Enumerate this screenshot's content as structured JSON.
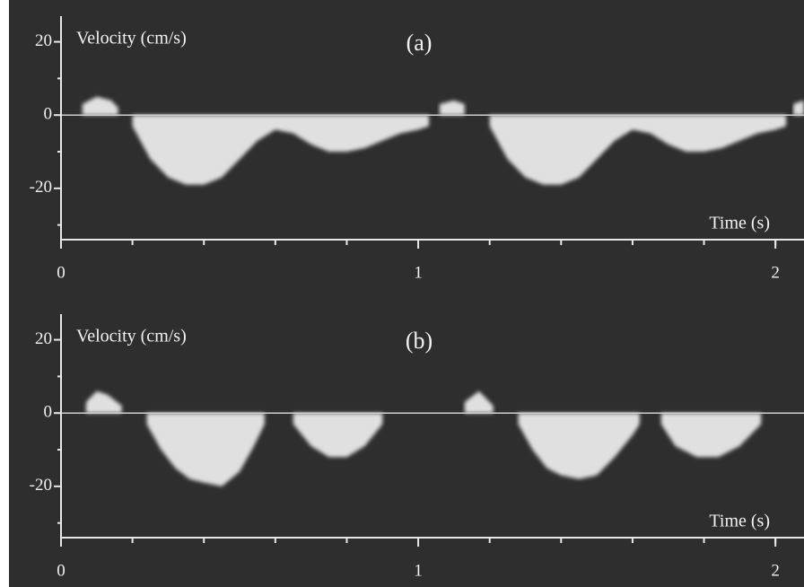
{
  "chart_data": [
    {
      "type": "area",
      "title": "(a)",
      "y_label": "Velocity (cm/s)",
      "x_label": "Time (s)",
      "xlim": [
        0,
        2.08
      ],
      "ylim": [
        -34,
        27
      ],
      "xticks": [
        0,
        1,
        2
      ],
      "yticks": [
        20,
        0,
        -20
      ],
      "x_minor_ticks": [
        0.2,
        0.4,
        0.6,
        0.8,
        1.2,
        1.4,
        1.6,
        1.8,
        2.0
      ],
      "y_minor_ticks": [
        10,
        -10,
        -30
      ],
      "color": "#ffffff",
      "series": [
        {
          "x": [
            0.2,
            0.25,
            0.3,
            0.35,
            0.4,
            0.45,
            0.5,
            0.55,
            0.6,
            0.65,
            0.7,
            0.75,
            0.8,
            0.85,
            0.9,
            0.95,
            1.0,
            1.03,
            null,
            1.2,
            1.25,
            1.3,
            1.35,
            1.4,
            1.45,
            1.5,
            1.55,
            1.6,
            1.65,
            1.7,
            1.75,
            1.8,
            1.85,
            1.9,
            1.95,
            2.0,
            2.03
          ],
          "values": [
            -3,
            -12,
            -17,
            -19,
            -19,
            -17,
            -12,
            -7,
            -4,
            -5,
            -8,
            -10,
            -10,
            -9,
            -7,
            -5,
            -4,
            -3,
            null,
            -3,
            -12,
            -17,
            -19,
            -19,
            -17,
            -12,
            -7,
            -4,
            -5,
            -8,
            -10,
            -10,
            -9,
            -7,
            -5,
            -4,
            -3
          ]
        },
        {
          "x": [
            0.06,
            0.1,
            0.14,
            0.16,
            null,
            1.06,
            1.1,
            1.13,
            null,
            2.05,
            2.08
          ],
          "values": [
            3,
            5,
            4,
            2,
            null,
            3,
            4,
            3,
            null,
            3,
            4
          ]
        }
      ]
    },
    {
      "type": "area",
      "title": "(b)",
      "y_label": "Velocity (cm/s)",
      "x_label": "Time (s)",
      "xlim": [
        0,
        2.08
      ],
      "ylim": [
        -34,
        27
      ],
      "xticks": [
        0,
        1,
        2
      ],
      "yticks": [
        20,
        0,
        -20
      ],
      "x_minor_ticks": [
        0.2,
        0.4,
        0.6,
        0.8,
        1.2,
        1.4,
        1.6,
        1.8,
        2.0
      ],
      "y_minor_ticks": [
        10,
        -10,
        -30
      ],
      "color": "#ffffff",
      "series": [
        {
          "x": [
            0.24,
            0.28,
            0.32,
            0.36,
            0.4,
            0.45,
            0.5,
            0.54,
            0.57,
            null,
            0.65,
            0.7,
            0.75,
            0.8,
            0.85,
            0.9,
            null,
            1.28,
            1.32,
            1.36,
            1.4,
            1.45,
            1.5,
            1.55,
            1.6,
            1.62,
            null,
            1.68,
            1.72,
            1.78,
            1.84,
            1.9,
            1.96
          ],
          "values": [
            -3,
            -10,
            -15,
            -18,
            -19,
            -20,
            -16,
            -9,
            -3,
            null,
            -3,
            -9,
            -12,
            -12,
            -9,
            -3,
            null,
            -3,
            -10,
            -15,
            -17,
            -18,
            -17,
            -12,
            -6,
            -3,
            null,
            -3,
            -9,
            -12,
            -12,
            -9,
            -3
          ]
        },
        {
          "x": [
            0.07,
            0.1,
            0.13,
            0.17,
            null,
            1.13,
            1.17,
            1.21
          ],
          "values": [
            3,
            6,
            5,
            2,
            null,
            3,
            6,
            2
          ]
        }
      ]
    }
  ]
}
